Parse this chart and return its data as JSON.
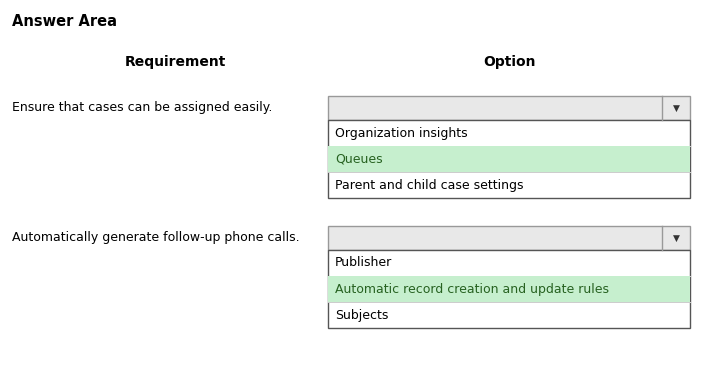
{
  "title": "Answer Area",
  "col_requirement": "Requirement",
  "col_option": "Option",
  "rows": [
    {
      "requirement": "Ensure that cases can be assigned easily.",
      "dropdown_items": [
        "Organization insights",
        "Queues",
        "Parent and child case settings"
      ],
      "selected_index": 1
    },
    {
      "requirement": "Automatically generate follow-up phone calls.",
      "dropdown_items": [
        "Publisher",
        "Automatic record creation and update rules",
        "Subjects"
      ],
      "selected_index": 1
    }
  ],
  "highlight_color": "#c6efce",
  "highlight_text_color": "#276221",
  "dropdown_bg": "#e8e8e8",
  "dropdown_border": "#999999",
  "list_border": "#555555",
  "normal_text_color": "#000000",
  "background_color": "#ffffff",
  "font_size": 9.0,
  "header_font_size": 10.0,
  "title_fontsize": 10.5
}
